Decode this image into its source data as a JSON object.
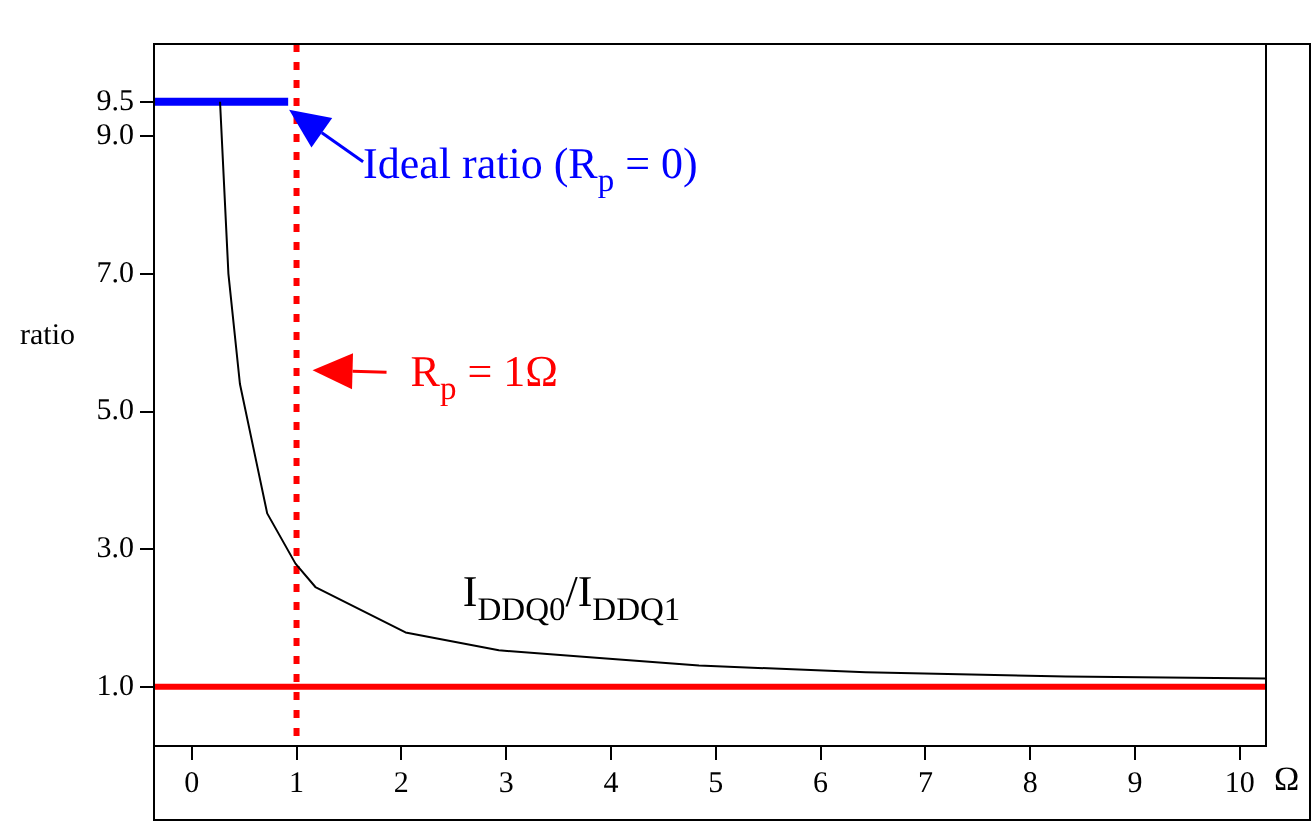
{
  "chart_data": {
    "type": "line",
    "ylabel": "ratio",
    "xlabel": "Ω",
    "xlim": [
      -0.36,
      10.25
    ],
    "xticks": [
      0,
      1,
      2,
      3,
      4,
      5,
      6,
      7,
      8,
      9,
      10
    ],
    "ylim": [
      0.14,
      10.34
    ],
    "yticks": [
      {
        "value": 1,
        "label": "1.0"
      },
      {
        "value": 3,
        "label": "3.0"
      },
      {
        "value": 5,
        "label": "5.0"
      },
      {
        "value": 7,
        "label": "7.0"
      },
      {
        "value": 9,
        "label": "9.0"
      },
      {
        "value": 9.5,
        "label": "9.5"
      }
    ],
    "grid": false,
    "legend": false,
    "marker": "none",
    "line_style": "solid",
    "series": [
      {
        "color": "#000000",
        "x": [
          0.27,
          0.35,
          0.46,
          0.72,
          0.99,
          1.18,
          2.04,
          2.93,
          3.89,
          4.84,
          6.43,
          8.34,
          10.25
        ],
        "values": [
          9.5,
          7.0,
          5.4,
          3.52,
          2.79,
          2.45,
          1.79,
          1.53,
          1.42,
          1.31,
          1.21,
          1.15,
          1.12
        ]
      },
      {
        "color": "#0000ff",
        "x": [
          -0.36,
          0.92
        ],
        "values": [
          9.5,
          9.5
        ]
      }
    ],
    "ref_lines": [
      {
        "axis": "y",
        "value": 1,
        "color": "#ff0000",
        "line_style": "solid"
      },
      {
        "axis": "x",
        "value": 1,
        "color": "#ff0000",
        "line_style": "dotted"
      }
    ],
    "annotations": [
      {
        "text": "Ideal ratio (R$_{p}$ = 0)",
        "x": 0.7,
        "y": 9.5
      },
      {
        "text": "R$_{p}$ = 1Ω",
        "x": 1,
        "y": 5.6
      },
      {
        "text": "I$_{DDQ0}$/I$_{DDQ1}$",
        "x": 2.93,
        "y": 1.53
      }
    ]
  }
}
